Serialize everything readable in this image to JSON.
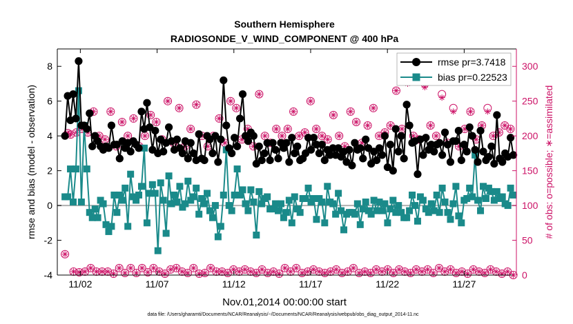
{
  "chart_data": {
    "type": "line",
    "title": "Southern Hemisphere",
    "subtitle": "RADIOSONDE_V_WIND_COMPONENT @ 400 hPa",
    "xlabel": "Nov.01,2014 00:00:00 start",
    "ylabel": "rmse and bias (model - observation)",
    "y2label": "# of obs: o=possible; ∗=assimilated",
    "footnote": "data file: /Users/gharamti/Documents/NCAR/Reanalysis/~/Documents/NCAR/Reanalysis/webpub/obs_diag_output_2014-11.nc",
    "xlim": [
      0.5,
      30.4
    ],
    "ylim": [
      -4,
      9
    ],
    "y2lim": [
      0,
      325
    ],
    "x_ticks": [
      2,
      7,
      12,
      17,
      22,
      27
    ],
    "x_tick_labels": [
      "11/02",
      "11/07",
      "11/12",
      "11/17",
      "11/22",
      "11/27"
    ],
    "y_ticks": [
      -4,
      -2,
      0,
      2,
      4,
      6,
      8
    ],
    "y2_ticks": [
      0,
      50,
      100,
      150,
      200,
      250,
      300
    ],
    "grid": false,
    "legend_position": "top-right",
    "colors": {
      "rmse": "#000000",
      "bias": "#1a8a8a",
      "obs": "#cc1166",
      "zero_line": "#b0b0b0"
    },
    "series": [
      {
        "name": "rmse pr=3.7418",
        "axis": "left",
        "marker": "circle",
        "values": [
          4.0,
          6.3,
          4.9,
          6.4,
          5.0,
          8.3,
          4.6,
          4.6,
          4.4,
          5.3,
          3.4,
          4.0,
          3.7,
          3.4,
          3.2,
          3.4,
          3.3,
          4.6,
          3.5,
          3.5,
          2.7,
          3.7,
          3.3,
          3.6,
          3.1,
          3.7,
          3.5,
          3.3,
          5.4,
          4.4,
          5.9,
          4.5,
          3.2,
          4.3,
          3.0,
          3.8,
          3.1,
          3.6,
          4.5,
          3.7,
          3.2,
          3.8,
          3.3,
          3.0,
          3.7,
          2.7,
          3.6,
          3.0,
          2.6,
          4.1,
          2.7,
          2.6,
          4.0,
          3.8,
          3.0,
          4.0,
          2.5,
          3.8,
          7.2,
          4.6,
          3.3,
          3.0,
          3.9,
          3.4,
          5.0,
          6.4,
          4.0,
          3.7,
          4.2,
          4.0,
          2.4,
          3.4,
          2.6,
          3.0,
          3.6,
          2.6,
          3.6,
          3.2,
          2.7,
          3.6,
          3.3,
          3.6,
          2.5,
          3.9,
          3.0,
          3.4,
          2.6,
          2.7,
          3.0,
          3.9,
          3.2,
          3.9,
          3.5,
          3.0,
          3.5,
          2.6,
          3.2,
          2.9,
          3.3,
          2.9,
          3.3,
          2.8,
          3.1,
          2.5,
          3.2,
          2.3,
          3.6,
          3.2,
          3.3,
          2.7,
          3.8,
          3.3,
          2.4,
          3.1,
          2.6,
          3.3,
          2.9,
          4.0,
          2.2,
          3.5,
          2.0,
          4.4,
          3.1,
          4.0,
          2.7,
          5.8,
          4.6,
          3.6,
          3.7,
          1.8,
          3.8,
          2.9,
          3.9,
          3.2,
          3.5,
          3.1,
          3.5,
          3.6,
          2.9,
          4.2,
          3.5,
          2.5,
          3.7,
          3.7,
          4.3,
          2.6,
          3.5,
          3.1,
          4.5,
          4.0,
          3.2,
          2.5,
          4.3,
          3.1,
          2.6,
          2.8,
          3.4,
          2.4,
          5.2,
          2.7,
          2.5,
          3.0,
          2.8,
          3.9,
          2.9
        ]
      },
      {
        "name": "bias pr=0.22523",
        "axis": "left",
        "marker": "square",
        "values": [
          0.5,
          0.5,
          2.1,
          0.2,
          2.1,
          6.6,
          0.2,
          4.6,
          2.1,
          -0.4,
          -0.7,
          -0.2,
          -0.7,
          0.3,
          0.1,
          -1.1,
          -1.5,
          -1.2,
          0.6,
          -0.4,
          0.6,
          0.3,
          1.0,
          -1.2,
          1.8,
          0.5,
          0.3,
          0.6,
          1.1,
          3.3,
          -1.0,
          0.7,
          1.2,
          0.7,
          -2.6,
          1.3,
          0.3,
          -1.6,
          1.7,
          0.1,
          0.6,
          0.2,
          1.1,
          -0.1,
          0.1,
          1.4,
          0.3,
          0.5,
          1.0,
          -0.5,
          0.4,
          0.1,
          0.7,
          -0.3,
          -0.7,
          0.0,
          -1.8,
          -1.2,
          0.6,
          3.2,
          0.0,
          -0.3,
          0.6,
          2.1,
          0.6,
          0.9,
          0.1,
          -0.3,
          0.9,
          0.2,
          -1.7,
          0.8,
          0.1,
          0.4,
          0.5,
          -0.2,
          -0.2,
          0.1,
          -0.3,
          0.1,
          -0.7,
          -0.4,
          0.3,
          -1.0,
          0.5,
          -0.2,
          -0.4,
          0.4,
          0.4,
          1.0,
          0.2,
          0.4,
          -0.8,
          0.4,
          0.2,
          -1.0,
          1.1,
          0.2,
          0.1,
          -0.5,
          0.7,
          -0.3,
          -1.4,
          -0.5,
          -0.4,
          -0.4,
          -0.5,
          0.1,
          -1.1,
          -0.2,
          0.2,
          -0.3,
          -0.5,
          0.3,
          -0.3,
          0.2,
          -0.3,
          0.1,
          -1.0,
          -0.2,
          0.3,
          -0.4,
          0.0,
          -0.4,
          -0.7,
          -0.7,
          -0.3,
          0.6,
          0.0,
          -0.9,
          0.5,
          0.3,
          -0.2,
          -0.4,
          0.1,
          -0.3,
          0.6,
          -0.4,
          1.0,
          0.2,
          -0.4,
          -0.8,
          0.1,
          1.1,
          -0.6,
          -1.0,
          0.3,
          0.4,
          1.0,
          0.5,
          2.9,
          0.3,
          -0.3,
          1.1,
          0.4,
          1.0,
          0.8,
          0.3,
          0.8,
          0.4,
          0.5,
          0.1,
          0.0,
          1.0,
          0.6
        ]
      },
      {
        "name": "possible",
        "axis": "right",
        "marker": "circle-open",
        "values": [
          30,
          204,
          202,
          5,
          205,
          4,
          210,
          5,
          205,
          10,
          235,
          5,
          200,
          5,
          195,
          5,
          235,
          2,
          185,
          10,
          220,
          3,
          200,
          10,
          225,
          3,
          185,
          10,
          200,
          4,
          230,
          10,
          220,
          5,
          195,
          2,
          250,
          8,
          190,
          10,
          240,
          5,
          185,
          3,
          210,
          10,
          245,
          2,
          200,
          3,
          185,
          10,
          200,
          5,
          225,
          5,
          190,
          3,
          250,
          8,
          240,
          5,
          195,
          8,
          210,
          5,
          185,
          3,
          260,
          8,
          200,
          3,
          190,
          5,
          210,
          2,
          200,
          10,
          210,
          5,
          235,
          10,
          200,
          3,
          205,
          5,
          250,
          8,
          210,
          5,
          200,
          3,
          195,
          5,
          230,
          8,
          200,
          3,
          185,
          5,
          235,
          10,
          220,
          3,
          190,
          5,
          215,
          3,
          240,
          8,
          200,
          5,
          205,
          8,
          215,
          3,
          265,
          8,
          210,
          5,
          280,
          3,
          200,
          8,
          195,
          5,
          275,
          8,
          215,
          3,
          200,
          10,
          260,
          5,
          190,
          8,
          240,
          3,
          185,
          5,
          210,
          2,
          235,
          8,
          195,
          5,
          215,
          3,
          240,
          8,
          200,
          5,
          205,
          2,
          215,
          5,
          210,
          0
        ]
      },
      {
        "name": "assimilated",
        "axis": "right",
        "marker": "asterisk",
        "values": [
          30,
          204,
          202,
          5,
          205,
          4,
          210,
          5,
          205,
          10,
          235,
          5,
          200,
          5,
          195,
          5,
          235,
          2,
          185,
          10,
          220,
          3,
          200,
          10,
          225,
          3,
          185,
          10,
          200,
          4,
          230,
          10,
          220,
          5,
          195,
          2,
          250,
          8,
          190,
          10,
          240,
          5,
          185,
          3,
          210,
          10,
          245,
          2,
          200,
          3,
          185,
          10,
          200,
          5,
          225,
          5,
          190,
          3,
          250,
          8,
          240,
          5,
          195,
          8,
          210,
          5,
          185,
          3,
          260,
          8,
          200,
          3,
          190,
          5,
          210,
          2,
          200,
          10,
          210,
          5,
          235,
          10,
          200,
          3,
          205,
          5,
          250,
          8,
          210,
          5,
          200,
          3,
          195,
          5,
          230,
          8,
          200,
          3,
          185,
          5,
          235,
          10,
          220,
          3,
          190,
          5,
          215,
          3,
          240,
          8,
          200,
          5,
          205,
          8,
          215,
          3,
          265,
          8,
          210,
          5,
          275,
          3,
          200,
          8,
          195,
          5,
          270,
          8,
          215,
          3,
          200,
          10,
          255,
          5,
          190,
          8,
          235,
          3,
          185,
          5,
          210,
          2,
          235,
          8,
          195,
          5,
          215,
          3,
          235,
          8,
          200,
          5,
          205,
          2,
          215,
          5,
          210,
          0
        ]
      }
    ]
  }
}
